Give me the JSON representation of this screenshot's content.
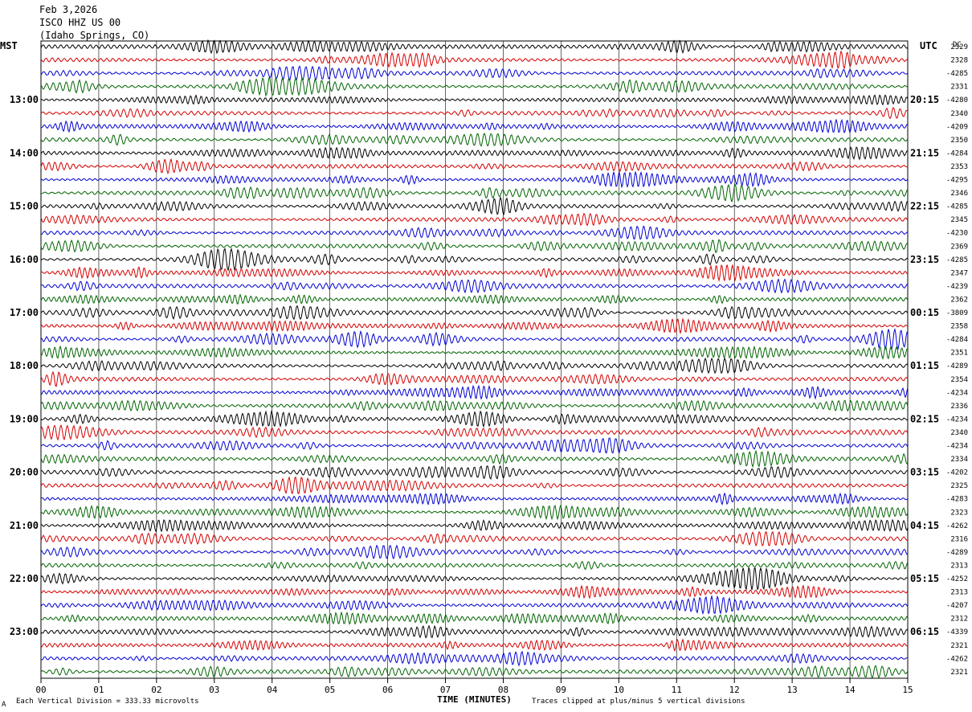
{
  "header": {
    "date": "Feb 3,2026",
    "station": "ISCO HHZ US 00",
    "location": "(Idaho Springs, CO)"
  },
  "chart_data": {
    "type": "line",
    "title": "Feb 3,2026",
    "left_timezone": "MST",
    "right_timezone": "UTC",
    "dc_header": "DC",
    "xlabel": "TIME (MINUTES)",
    "x_ticks": [
      "00",
      "01",
      "02",
      "03",
      "04",
      "05",
      "06",
      "07",
      "08",
      "09",
      "10",
      "11",
      "12",
      "13",
      "14",
      "15"
    ],
    "xlim": [
      0,
      15
    ],
    "left_hour_labels": [
      "13:00",
      "14:00",
      "15:00",
      "16:00",
      "17:00",
      "18:00",
      "19:00",
      "20:00",
      "21:00",
      "22:00",
      "23:00"
    ],
    "right_hour_labels": [
      "20:15",
      "21:15",
      "22:15",
      "23:15",
      "00:15",
      "01:15",
      "02:15",
      "03:15",
      "04:15",
      "05:15",
      "06:15"
    ],
    "trace_colors": [
      "#000000",
      "#d40000",
      "#0000d4",
      "#006400"
    ],
    "dc_offsets": [
      "2329",
      "2328",
      "-4285",
      "2331",
      "-4280",
      "2340",
      "-4209",
      "2350",
      "-4284",
      "2353",
      "-4295",
      "2346",
      "-4285",
      "2345",
      "-4230",
      "2369",
      "-4285",
      "2347",
      "-4239",
      "2362",
      "-3809",
      "2358",
      "-4284",
      "2351",
      "-4289",
      "2354",
      "-4234",
      "2336",
      "-4234",
      "2340",
      "-4234",
      "2334",
      "-4202",
      "2325",
      "-4283",
      "2323",
      "-4262",
      "2316",
      "-4289",
      "2313",
      "-4252",
      "2313",
      "-4207",
      "2312",
      "-4339",
      "2321",
      "-4262",
      "2321"
    ],
    "trace_count": 48,
    "scale_note": "Each Vertical Division =  333.33 microvolts",
    "clip_note": "Traces clipped at plus/minus 5 vertical divisions",
    "corner_mark": "A"
  }
}
